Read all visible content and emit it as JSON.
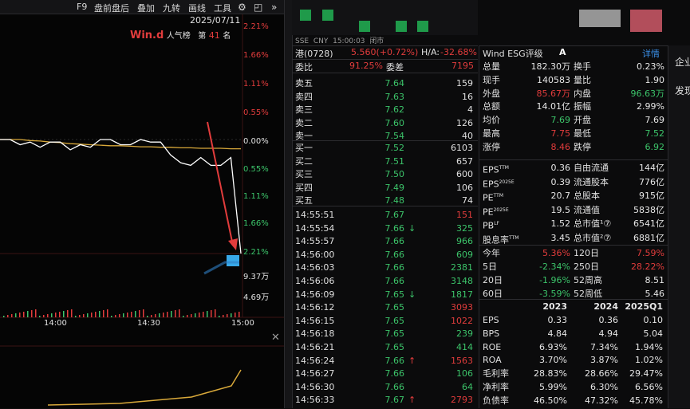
{
  "toolbar": {
    "items": [
      "F9",
      "盘前盘后",
      "叠加",
      "九转",
      "画线",
      "工具"
    ]
  },
  "chart": {
    "date": "2025/07/11",
    "brand": "Win.d",
    "popularity_label": "人气榜",
    "rank_prefix": "第",
    "rank": "41",
    "rank_suffix": "名",
    "price_axis": [
      "2.21%",
      "1.66%",
      "1.11%",
      "0.55%",
      "0.00%",
      "0.55%",
      "1.11%",
      "1.66%",
      "2.21%"
    ],
    "volume_axis": [
      "9.37万",
      "4.69万"
    ],
    "time_axis": [
      "14:00",
      "14:30",
      "15:00"
    ]
  },
  "chart_data": {
    "type": "line",
    "series": [
      {
        "values": [
          0.0,
          0.0,
          -0.1,
          -0.05,
          -0.15,
          -0.05,
          -0.05,
          -0.2,
          -0.1,
          -0.15,
          0.0,
          0.0,
          -0.1,
          -0.1,
          0.0,
          -0.05,
          -0.05,
          -0.3,
          -0.45,
          -0.5,
          -0.35,
          -0.5,
          -0.5,
          -0.35,
          -2.21
        ]
      },
      {
        "values": [
          0.0,
          0.0,
          0.0,
          -0.02,
          -0.03,
          -0.05,
          -0.06,
          -0.08,
          -0.09,
          -0.1,
          -0.11,
          -0.12,
          -0.12,
          -0.13,
          -0.14,
          -0.14,
          -0.15,
          -0.15,
          -0.16,
          -0.16,
          -0.17,
          -0.17,
          -0.17,
          -0.18,
          -0.18
        ]
      }
    ],
    "ylim": [
      -2.21,
      2.21
    ]
  },
  "quote": {
    "exchange": "SSE",
    "currency": "CNY",
    "time": "15:00:03",
    "status": "闭市",
    "name": "港(0728)",
    "price_change": "5.560(+0.72%)",
    "ha_label": "H/A:",
    "ha_value": "-32.68%",
    "wei_bi_label": "委比",
    "wei_bi_value": "91.25%",
    "wei_cha_label": "委差",
    "wei_cha_value": "7195"
  },
  "asks": [
    {
      "label": "卖五",
      "price": "7.64",
      "vol": "159"
    },
    {
      "label": "卖四",
      "price": "7.63",
      "vol": "16"
    },
    {
      "label": "卖三",
      "price": "7.62",
      "vol": "4"
    },
    {
      "label": "卖二",
      "price": "7.60",
      "vol": "126"
    },
    {
      "label": "卖一",
      "price": "7.54",
      "vol": "40"
    }
  ],
  "bids": [
    {
      "label": "买一",
      "price": "7.52",
      "vol": "6103"
    },
    {
      "label": "买二",
      "price": "7.51",
      "vol": "657"
    },
    {
      "label": "买三",
      "price": "7.50",
      "vol": "600"
    },
    {
      "label": "买四",
      "price": "7.49",
      "vol": "106"
    },
    {
      "label": "买五",
      "price": "7.48",
      "vol": "74"
    }
  ],
  "ticks": [
    {
      "time": "14:55:51",
      "price": "7.67",
      "arrow": "",
      "vol": "151",
      "dir": "red"
    },
    {
      "time": "14:55:54",
      "price": "7.66",
      "arrow": "↓",
      "vol": "325",
      "dir": "green"
    },
    {
      "time": "14:55:57",
      "price": "7.66",
      "arrow": "",
      "vol": "966",
      "dir": "green"
    },
    {
      "time": "14:56:00",
      "price": "7.66",
      "arrow": "",
      "vol": "609",
      "dir": "green"
    },
    {
      "time": "14:56:03",
      "price": "7.66",
      "arrow": "",
      "vol": "2381",
      "dir": "green"
    },
    {
      "time": "14:56:06",
      "price": "7.66",
      "arrow": "",
      "vol": "3148",
      "dir": "green"
    },
    {
      "time": "14:56:09",
      "price": "7.65",
      "arrow": "↓",
      "vol": "1817",
      "dir": "green"
    },
    {
      "time": "14:56:12",
      "price": "7.65",
      "arrow": "",
      "vol": "3093",
      "dir": "red"
    },
    {
      "time": "14:56:15",
      "price": "7.65",
      "arrow": "",
      "vol": "1022",
      "dir": "red"
    },
    {
      "time": "14:56:18",
      "price": "7.65",
      "arrow": "",
      "vol": "239",
      "dir": "green"
    },
    {
      "time": "14:56:21",
      "price": "7.65",
      "arrow": "",
      "vol": "414",
      "dir": "green"
    },
    {
      "time": "14:56:24",
      "price": "7.66",
      "arrow": "↑",
      "vol": "1563",
      "dir": "red"
    },
    {
      "time": "14:56:27",
      "price": "7.66",
      "arrow": "",
      "vol": "106",
      "dir": "green"
    },
    {
      "time": "14:56:30",
      "price": "7.66",
      "arrow": "",
      "vol": "64",
      "dir": "green"
    },
    {
      "time": "14:56:33",
      "price": "7.67",
      "arrow": "↑",
      "vol": "2793",
      "dir": "red"
    }
  ],
  "esg": {
    "label": "Wind ESG评级",
    "rating": "A",
    "detail": "详情"
  },
  "stats": [
    {
      "l1": "总量",
      "v1": "182.30万",
      "c1": "white",
      "l2": "换手",
      "v2": "0.23%",
      "c2": "white"
    },
    {
      "l1": "现手",
      "v1": "140583",
      "c1": "white",
      "l2": "量比",
      "v2": "1.90",
      "c2": "white"
    },
    {
      "l1": "外盘",
      "v1": "85.67万",
      "c1": "red",
      "l2": "内盘",
      "v2": "96.63万",
      "c2": "green"
    },
    {
      "l1": "总额",
      "v1": "14.01亿",
      "c1": "white",
      "l2": "振幅",
      "v2": "2.99%",
      "c2": "white"
    },
    {
      "l1": "均价",
      "v1": "7.69",
      "c1": "green",
      "l2": "开盘",
      "v2": "7.69",
      "c2": "white"
    },
    {
      "l1": "最高",
      "v1": "7.75",
      "c1": "red",
      "l2": "最低",
      "v2": "7.52",
      "c2": "green"
    },
    {
      "l1": "涨停",
      "v1": "8.46",
      "c1": "red",
      "l2": "跌停",
      "v2": "6.92",
      "c2": "green"
    }
  ],
  "valuation": [
    {
      "l1": "EPS",
      "s1": "TTM",
      "v1": "0.36",
      "l2": "自由流通",
      "v2": "144亿"
    },
    {
      "l1": "EPS",
      "s1": "2025E",
      "v1": "0.39",
      "l2": "流通股本",
      "v2": "776亿"
    },
    {
      "l1": "PE",
      "s1": "TTM",
      "v1": "20.7",
      "l2": "总股本",
      "v2": "915亿"
    },
    {
      "l1": "PE",
      "s1": "2025E",
      "v1": "19.5",
      "l2": "流通值",
      "v2": "5838亿"
    },
    {
      "l1": "PB",
      "s1": "LF",
      "v1": "1.52",
      "l2": "总市值¹⑦",
      "v2": "6541亿"
    },
    {
      "l1": "股息率",
      "s1": "TTM",
      "v1": "3.45",
      "l2": "总市值²⑦",
      "v2": "6881亿"
    }
  ],
  "returns": [
    {
      "l1": "今年",
      "v1": "5.36%",
      "c1": "red",
      "l2": "120日",
      "v2": "7.59%",
      "c2": "red"
    },
    {
      "l1": "5日",
      "v1": "-2.34%",
      "c1": "green",
      "l2": "250日",
      "v2": "28.22%",
      "c2": "red"
    },
    {
      "l1": "20日",
      "v1": "-1.96%",
      "c1": "green",
      "l2": "52周高",
      "v2": "8.51",
      "c2": "white"
    },
    {
      "l1": "60日",
      "v1": "-3.59%",
      "c1": "green",
      "l2": "52周低",
      "v2": "5.46",
      "c2": "white"
    }
  ],
  "fin": {
    "headers": [
      "2023",
      "2024",
      "2025Q1"
    ],
    "rows": [
      {
        "label": "EPS",
        "v": [
          "0.33",
          "0.36",
          "0.10"
        ]
      },
      {
        "label": "BPS",
        "v": [
          "4.84",
          "4.94",
          "5.04"
        ]
      },
      {
        "label": "ROE",
        "v": [
          "6.93%",
          "7.34%",
          "1.94%"
        ]
      },
      {
        "label": "ROA",
        "v": [
          "3.70%",
          "3.87%",
          "1.02%"
        ]
      },
      {
        "label": "毛利率",
        "v": [
          "28.83%",
          "28.66%",
          "29.47%"
        ]
      },
      {
        "label": "净利率",
        "v": [
          "5.99%",
          "6.30%",
          "6.56%"
        ]
      },
      {
        "label": "负债率",
        "v": [
          "46.50%",
          "47.32%",
          "45.78%"
        ]
      }
    ]
  },
  "side": {
    "items": [
      "企业",
      "发现"
    ]
  },
  "colors": {
    "up": "#e23c3c",
    "down": "#3cc46a",
    "price_line": "#ffffff",
    "avg_line": "#d9a93a",
    "accent": "#3a8ee6"
  }
}
